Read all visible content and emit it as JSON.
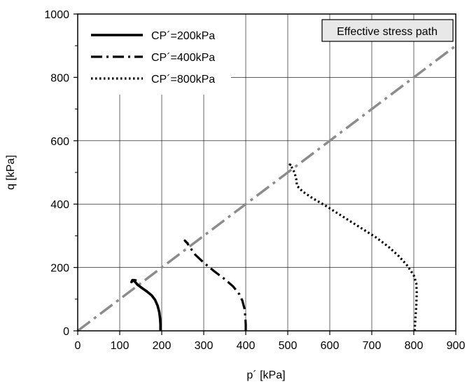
{
  "chart_data": {
    "type": "line",
    "xlabel": "p´ [kPa]",
    "ylabel": "q [kPa]",
    "xlim": [
      0,
      900
    ],
    "ylim": [
      0,
      1000
    ],
    "xticks": [
      0,
      100,
      200,
      300,
      400,
      500,
      600,
      700,
      800,
      900
    ],
    "yticks": [
      0,
      200,
      400,
      600,
      800,
      1000
    ],
    "grid": true,
    "legend_position": "top-left",
    "annotation": "Effective stress path",
    "reference_line": {
      "x": [
        0,
        900
      ],
      "y": [
        0,
        900
      ],
      "color": "#8c8c8c",
      "dash": "dash-dot"
    },
    "series": [
      {
        "name": "CP´=200kPa",
        "dash": "solid",
        "color": "#000000",
        "x": [
          197,
          197,
          196,
          194,
          190,
          184,
          176,
          165,
          152,
          142,
          137,
          133,
          130,
          128,
          131,
          136,
          140
        ],
        "y": [
          0,
          20,
          40,
          60,
          80,
          98,
          112,
          124,
          136,
          146,
          154,
          160,
          160,
          154,
          158,
          160,
          158
        ]
      },
      {
        "name": "CP´=400kPa",
        "dash": "dash-dot",
        "color": "#000000",
        "x": [
          400,
          400,
          399,
          397,
          392,
          385,
          370,
          350,
          325,
          300,
          280,
          268,
          260,
          255,
          258,
          263
        ],
        "y": [
          0,
          20,
          45,
          70,
          95,
          115,
          140,
          163,
          188,
          215,
          240,
          262,
          278,
          285,
          280,
          275
        ]
      },
      {
        "name": "CP´=800kPa",
        "dash": "dotted",
        "color": "#000000",
        "x": [
          802,
          804,
          806,
          807,
          806,
          800,
          785,
          765,
          740,
          710,
          680,
          650,
          620,
          590,
          560,
          535,
          522,
          520,
          516,
          510,
          505,
          512
        ],
        "y": [
          0,
          40,
          80,
          120,
          150,
          175,
          205,
          235,
          265,
          295,
          320,
          345,
          370,
          395,
          418,
          440,
          458,
          480,
          500,
          515,
          525,
          520
        ]
      }
    ]
  }
}
